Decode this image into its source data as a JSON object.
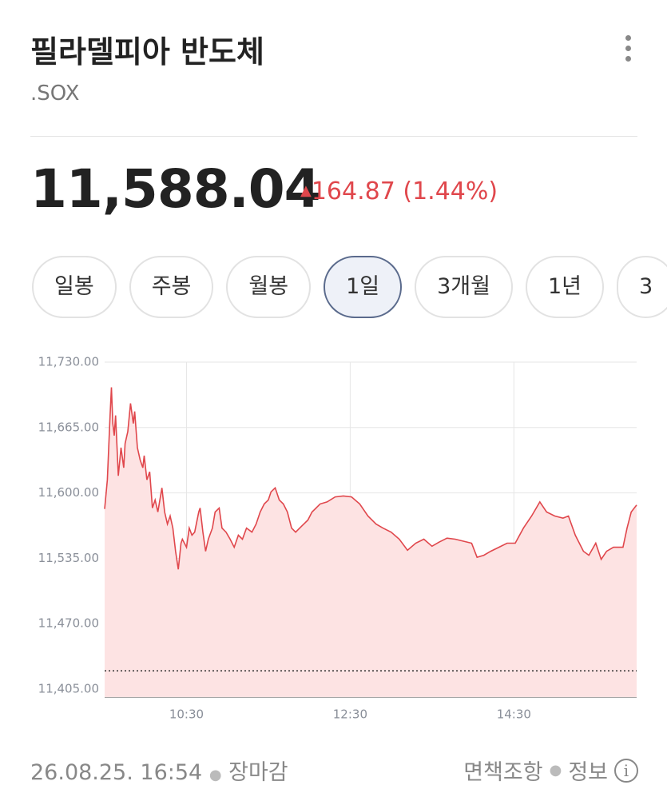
{
  "header": {
    "title": "필라델피아 반도체",
    "symbol": ".SOX"
  },
  "quote": {
    "price": "11,588.04",
    "change": "164.87",
    "change_pct": "(1.44%)"
  },
  "tabs": [
    "일봉",
    "주봉",
    "월봉",
    "1일",
    "3개월",
    "1년",
    "3"
  ],
  "selected_tab": 3,
  "chart_data": {
    "type": "line",
    "x": [
      570,
      572,
      574,
      575,
      576,
      577,
      578,
      580,
      582,
      584,
      585,
      587,
      589,
      591,
      592,
      594,
      596,
      598,
      599,
      601,
      603,
      605,
      607,
      609,
      612,
      614,
      616,
      618,
      620,
      622,
      624,
      626,
      627,
      630,
      632,
      634,
      636,
      639,
      640,
      642,
      644,
      646,
      649,
      651,
      654,
      656,
      659,
      662,
      665,
      668,
      671,
      674,
      678,
      681,
      684,
      687,
      690,
      692,
      695,
      698,
      701,
      704,
      707,
      710,
      713,
      716,
      719,
      722,
      725,
      728,
      733,
      739,
      745,
      751,
      757,
      763,
      769,
      774,
      780,
      786,
      792,
      798,
      804,
      810,
      815,
      821,
      827,
      833,
      839,
      843,
      848,
      853,
      859,
      865,
      871,
      877,
      883,
      889,
      894,
      900,
      906,
      910,
      915,
      921,
      925,
      930,
      934,
      938,
      943,
      947,
      950,
      953,
      956,
      960
    ],
    "series": [
      {
        "color": "#e0474c",
        "fill": "#fde3e3",
        "values": [
          11584,
          11613,
          11677,
          11705,
          11669,
          11657,
          11677,
          11617,
          11645,
          11625,
          11649,
          11661,
          11689,
          11669,
          11681,
          11645,
          11633,
          11625,
          11637,
          11613,
          11621,
          11585,
          11593,
          11581,
          11605,
          11581,
          11569,
          11577,
          11565,
          11542,
          11524,
          11550,
          11554,
          11546,
          11565,
          11558,
          11561,
          11581,
          11585,
          11561,
          11542,
          11554,
          11565,
          11581,
          11585,
          11565,
          11561,
          11554,
          11546,
          11558,
          11554,
          11565,
          11561,
          11569,
          11581,
          11589,
          11593,
          11601,
          11605,
          11593,
          11589,
          11581,
          11565,
          11561,
          11565,
          11569,
          11573,
          11581,
          11585,
          11589,
          11591,
          11596,
          11597,
          11596,
          11589,
          11577,
          11569,
          11565,
          11561,
          11554,
          11543,
          11550,
          11554,
          11547,
          11551,
          11555,
          11554,
          11552,
          11550,
          11536,
          11538,
          11542,
          11546,
          11550,
          11550,
          11565,
          11577,
          11591,
          11581,
          11577,
          11575,
          11577,
          11558,
          11542,
          11538,
          11550,
          11534,
          11542,
          11546,
          11546,
          11546,
          11565,
          11581,
          11588.04
        ]
      }
    ],
    "xlim": [
      570,
      960
    ],
    "xticks": [
      {
        "value": 630,
        "label": "10:30"
      },
      {
        "value": 750,
        "label": "12:30"
      },
      {
        "value": 870,
        "label": "14:30"
      }
    ],
    "ylim": [
      11405,
      11730
    ],
    "yticks": [
      {
        "value": 11405,
        "label": "11,405.00"
      },
      {
        "value": 11470,
        "label": "11,470.00"
      },
      {
        "value": 11535,
        "label": "11,535.00"
      },
      {
        "value": 11600,
        "label": "11,600.00"
      },
      {
        "value": 11665,
        "label": "11,665.00"
      },
      {
        "value": 11730,
        "label": "11,730.00"
      }
    ],
    "prev_close": 11423.17,
    "grid": true
  },
  "footer": {
    "timestamp": "26.08.25. 16:54",
    "status": "장마감",
    "disclaimer": "면책조항",
    "info": "정보"
  }
}
